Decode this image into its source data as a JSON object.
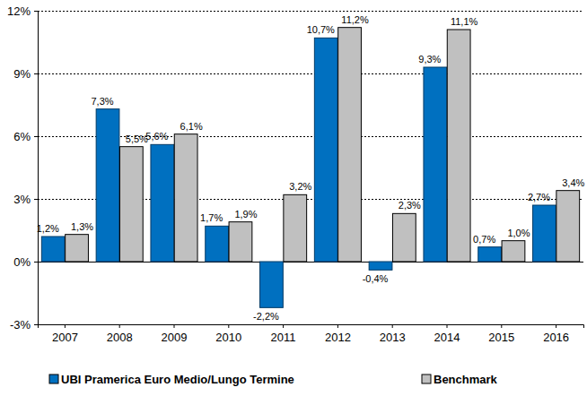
{
  "chart_data": {
    "type": "bar",
    "categories": [
      "2007",
      "2008",
      "2009",
      "2010",
      "2011",
      "2012",
      "2013",
      "2014",
      "2015",
      "2016"
    ],
    "series": [
      {
        "name": "UBI Pramerica Euro Medio/Lungo Termine",
        "color": "#0070c0",
        "values": [
          1.2,
          7.3,
          5.6,
          1.7,
          -2.2,
          10.7,
          -0.4,
          9.3,
          0.7,
          2.7
        ],
        "value_labels": [
          "1,2%",
          "7,3%",
          "5,6%",
          "1,7%",
          "-2,2%",
          "10,7%",
          "-0,4%",
          "9,3%",
          "0,7%",
          "2,7%"
        ]
      },
      {
        "name": "Benchmark",
        "color": "#c0c0c0",
        "values": [
          1.3,
          5.5,
          6.1,
          1.9,
          3.2,
          11.2,
          2.3,
          11.1,
          1.0,
          3.4
        ],
        "value_labels": [
          "1,3%",
          "5,5%",
          "6,1%",
          "1,9%",
          "3,2%",
          "11,2%",
          "2,3%",
          "11,1%",
          "1,0%",
          "3,4%"
        ]
      }
    ],
    "ylim": [
      -3,
      12
    ],
    "yticks": [
      {
        "value": -3,
        "label": "-3%"
      },
      {
        "value": 0,
        "label": "0%"
      },
      {
        "value": 3,
        "label": "3%"
      },
      {
        "value": 6,
        "label": "6%"
      },
      {
        "value": 9,
        "label": "9%"
      },
      {
        "value": 12,
        "label": "12%"
      }
    ],
    "grid": true,
    "data_labels": true,
    "legend": "bottom"
  }
}
